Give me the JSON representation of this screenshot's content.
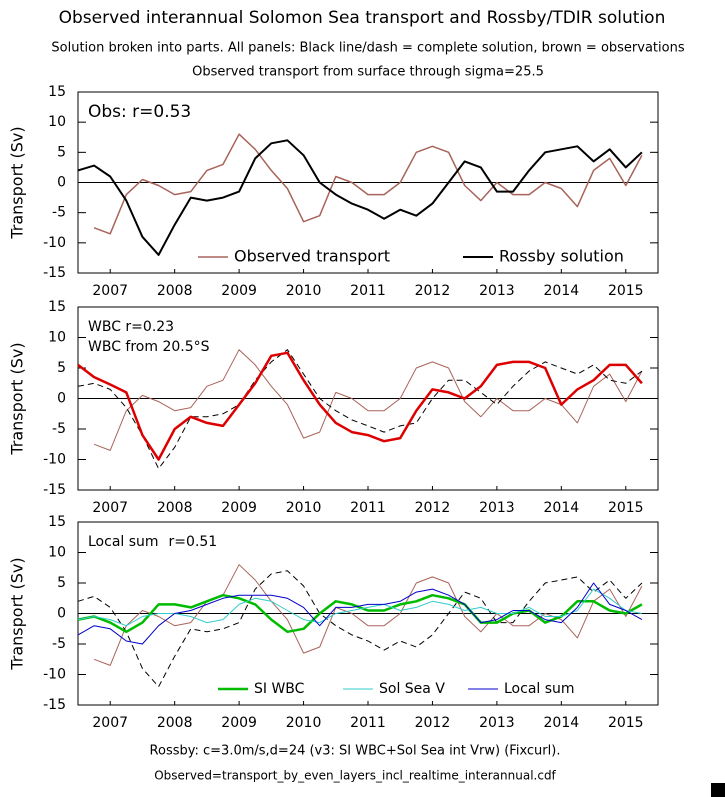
{
  "title": "Observed interannual Solomon Sea transport and Rossby/TDIR solution",
  "subtitle": [
    "Solution broken into parts. All panels: Black line/dash = complete solution, brown = observations",
    "Observed transport from surface through sigma=25.5"
  ],
  "footer": [
    "Rossby: c=3.0m/s,d=24 (v3: SI WBC+Sol Sea int Vrw) (Fixcurl).",
    "Observed=transport_by_even_layers_incl_realtime_interannual.cdf"
  ],
  "chart_data": [
    {
      "type": "line",
      "ylabel": "Transport (Sv)",
      "ylim": [
        -15,
        15
      ],
      "yticks": [
        -15,
        -10,
        -5,
        0,
        5,
        10,
        15
      ],
      "hline": 0,
      "xlim": [
        2007,
        2016
      ],
      "xticks": [
        {
          "value": 2007.5,
          "label": "2007"
        },
        {
          "value": 2008.5,
          "label": "2008"
        },
        {
          "value": 2009.5,
          "label": "2009"
        },
        {
          "value": 2010.5,
          "label": "2010"
        },
        {
          "value": 2011.5,
          "label": "2011"
        },
        {
          "value": 2012.5,
          "label": "2012"
        },
        {
          "value": 2013.5,
          "label": "2013"
        },
        {
          "value": 2014.5,
          "label": "2014"
        },
        {
          "value": 2015.5,
          "label": "2015"
        }
      ],
      "x": [
        2007.0,
        2007.25,
        2007.5,
        2007.75,
        2008.0,
        2008.25,
        2008.5,
        2008.75,
        2009.0,
        2009.25,
        2009.5,
        2009.75,
        2010.0,
        2010.25,
        2010.5,
        2010.75,
        2011.0,
        2011.25,
        2011.5,
        2011.75,
        2012.0,
        2012.25,
        2012.5,
        2012.75,
        2013.0,
        2013.25,
        2013.5,
        2013.75,
        2014.0,
        2014.25,
        2014.5,
        2014.75,
        2015.0,
        2015.25,
        2015.5,
        2015.75
      ],
      "annotations": [
        {
          "text": "Obs: r=0.53",
          "color": "#a8645a"
        }
      ],
      "legend": "lower center",
      "series": [
        {
          "name": "Observed transport",
          "color": "#a8645a",
          "width": 1.5,
          "values": [
            null,
            -7.5,
            -8.5,
            -2,
            0.5,
            -0.5,
            -2,
            -1.5,
            2,
            3,
            8,
            5.5,
            2,
            -1,
            -6.5,
            -5.5,
            1,
            0,
            -2,
            -2,
            0,
            5,
            6,
            5,
            -0.5,
            -3,
            0,
            -2,
            -2,
            0,
            -1,
            -4,
            2,
            4,
            -0.5,
            4.5
          ]
        },
        {
          "name": "Rossby solution",
          "color": "#000000",
          "width": 2,
          "values": [
            2,
            2.8,
            1,
            -3,
            -9,
            -12,
            -7,
            -2.5,
            -3,
            -2.5,
            -1.5,
            4,
            6.5,
            7,
            4.5,
            0,
            -2,
            -3.5,
            -4.5,
            -6,
            -4.5,
            -5.5,
            -3.5,
            0,
            3.5,
            2.5,
            -1.5,
            -1.5,
            2,
            5,
            5.5,
            6,
            3.5,
            5.5,
            2.5,
            5
          ]
        }
      ]
    },
    {
      "type": "line",
      "ylabel": "Transport (Sv)",
      "ylim": [
        -15,
        15
      ],
      "yticks": [
        -15,
        -10,
        -5,
        0,
        5,
        10,
        15
      ],
      "hline": 0,
      "xlim": [
        2007,
        2016
      ],
      "xticks": [
        {
          "value": 2007.5,
          "label": "2007"
        },
        {
          "value": 2008.5,
          "label": "2008"
        },
        {
          "value": 2009.5,
          "label": "2009"
        },
        {
          "value": 2010.5,
          "label": "2010"
        },
        {
          "value": 2011.5,
          "label": "2011"
        },
        {
          "value": 2012.5,
          "label": "2012"
        },
        {
          "value": 2013.5,
          "label": "2013"
        },
        {
          "value": 2014.5,
          "label": "2014"
        },
        {
          "value": 2015.5,
          "label": "2015"
        }
      ],
      "x": [
        2007.0,
        2007.25,
        2007.5,
        2007.75,
        2008.0,
        2008.25,
        2008.5,
        2008.75,
        2009.0,
        2009.25,
        2009.5,
        2009.75,
        2010.0,
        2010.25,
        2010.5,
        2010.75,
        2011.0,
        2011.25,
        2011.5,
        2011.75,
        2012.0,
        2012.25,
        2012.5,
        2012.75,
        2013.0,
        2013.25,
        2013.5,
        2013.75,
        2014.0,
        2014.25,
        2014.5,
        2014.75,
        2015.0,
        2015.25,
        2015.5,
        2015.75
      ],
      "annotations": [
        {
          "text": "WBC r=0.23",
          "color": "#dd0000"
        },
        {
          "text": "WBC from 20.5°S",
          "color": "#000000"
        }
      ],
      "series": [
        {
          "color": "#a8645a",
          "width": 1,
          "values": [
            null,
            -7.5,
            -8.5,
            -2,
            0.5,
            -0.5,
            -2,
            -1.5,
            2,
            3,
            8,
            5.5,
            2,
            -1,
            -6.5,
            -5.5,
            1,
            0,
            -2,
            -2,
            0,
            5,
            6,
            5,
            -0.5,
            -3,
            0,
            -2,
            -2,
            0,
            -1,
            -4,
            2,
            4,
            -0.5,
            4.5
          ]
        },
        {
          "color": "#000000",
          "width": 1,
          "dash": true,
          "values": [
            2,
            2.5,
            1.5,
            -1.5,
            -6,
            -11.5,
            -8,
            -3,
            -3,
            -2.5,
            -1,
            3,
            6,
            8,
            4,
            0,
            -2,
            -3.5,
            -4.5,
            -5.5,
            -4.5,
            -4,
            0,
            3,
            3,
            1,
            -1,
            2,
            4.5,
            6,
            5,
            4,
            5.5,
            3,
            2.5,
            4.5
          ]
        },
        {
          "color": "#dd0000",
          "width": 2.5,
          "values": [
            5.5,
            3.5,
            2.3,
            1,
            -6,
            -10,
            -5,
            -3,
            -4,
            -4.5,
            -1,
            2.5,
            7,
            7.5,
            3,
            -1,
            -4,
            -5.5,
            -6,
            -7,
            -6.5,
            -2,
            1.5,
            1,
            0,
            2,
            5.5,
            6,
            6,
            5,
            -1,
            1.5,
            3,
            5.5,
            5.5,
            2.5
          ]
        }
      ]
    },
    {
      "type": "line",
      "ylabel": "Transport (Sv)",
      "ylim": [
        -15,
        15
      ],
      "yticks": [
        -15,
        -10,
        -5,
        0,
        5,
        10,
        15
      ],
      "hline": 0,
      "xlim": [
        2007,
        2016
      ],
      "xticks": [
        {
          "value": 2007.5,
          "label": "2007"
        },
        {
          "value": 2008.5,
          "label": "2008"
        },
        {
          "value": 2009.5,
          "label": "2009"
        },
        {
          "value": 2010.5,
          "label": "2010"
        },
        {
          "value": 2011.5,
          "label": "2011"
        },
        {
          "value": 2012.5,
          "label": "2012"
        },
        {
          "value": 2013.5,
          "label": "2013"
        },
        {
          "value": 2014.5,
          "label": "2014"
        },
        {
          "value": 2015.5,
          "label": "2015"
        }
      ],
      "x": [
        2007.0,
        2007.25,
        2007.5,
        2007.75,
        2008.0,
        2008.25,
        2008.5,
        2008.75,
        2009.0,
        2009.25,
        2009.5,
        2009.75,
        2010.0,
        2010.25,
        2010.5,
        2010.75,
        2011.0,
        2011.25,
        2011.5,
        2011.75,
        2012.0,
        2012.25,
        2012.5,
        2012.75,
        2013.0,
        2013.25,
        2013.5,
        2013.75,
        2014.0,
        2014.25,
        2014.5,
        2014.75,
        2015.0,
        2015.25,
        2015.5,
        2015.75
      ],
      "annotations": [
        {
          "text": "Local sum",
          "color": "#0000cc"
        },
        {
          "text": "r=0.51",
          "color": "#a8645a"
        }
      ],
      "legend": "lower center",
      "series": [
        {
          "color": "#a8645a",
          "width": 1,
          "values": [
            null,
            -7.5,
            -8.5,
            -2,
            0.5,
            -0.5,
            -2,
            -1.5,
            2,
            3,
            8,
            5.5,
            2,
            -1,
            -6.5,
            -5.5,
            1,
            0,
            -2,
            -2,
            0,
            5,
            6,
            5,
            -0.5,
            -3,
            0,
            -2,
            -2,
            0,
            -1,
            -4,
            2,
            4,
            -0.5,
            4.5
          ]
        },
        {
          "color": "#000000",
          "width": 1,
          "dash": true,
          "values": [
            2,
            2.8,
            1,
            -3,
            -9,
            -12,
            -7,
            -2.5,
            -3,
            -2.5,
            -1.5,
            4,
            6.5,
            7,
            4.5,
            0,
            -2,
            -3.5,
            -4.5,
            -6,
            -4.5,
            -5.5,
            -3.5,
            0,
            3.5,
            2.5,
            -1.5,
            -1.5,
            2,
            5,
            5.5,
            6,
            3.5,
            5.5,
            2.5,
            5
          ]
        },
        {
          "name": "SI WBC",
          "color": "#00bb00",
          "width": 2.5,
          "values": [
            -1,
            -0.5,
            -1.5,
            -3,
            -1.5,
            1.5,
            1.5,
            1,
            2,
            3,
            2.5,
            1.5,
            -1,
            -3,
            -2.5,
            0,
            2,
            1.5,
            0.5,
            0.5,
            1.5,
            2,
            3,
            2.5,
            1.5,
            -1.5,
            -1.5,
            0,
            0.5,
            -1.5,
            -0.5,
            2,
            2,
            0.5,
            0,
            1.5
          ]
        },
        {
          "name": "Sol Sea V",
          "color": "#33cccc",
          "width": 1,
          "values": [
            -1,
            -0.5,
            -1,
            -2,
            -0.5,
            0,
            0,
            -0.5,
            -1.5,
            -1,
            1.5,
            2.5,
            2,
            0.5,
            -1,
            -1.5,
            0,
            0.5,
            1,
            1.5,
            0.5,
            1,
            2,
            1.5,
            0.5,
            1,
            0,
            0,
            1,
            -0.5,
            -0.5,
            0.5,
            4,
            2.5,
            0.5,
            0
          ]
        },
        {
          "name": "Local sum",
          "color": "#0000cc",
          "width": 1,
          "values": [
            -3.5,
            -2,
            -2.5,
            -4.5,
            -5,
            -2,
            0,
            0.5,
            1.5,
            2.5,
            3,
            3,
            3,
            2.5,
            1,
            -2,
            1,
            1,
            1.5,
            1.5,
            2,
            3.5,
            4,
            3,
            1.5,
            -1.5,
            -1,
            0.5,
            0.5,
            -1,
            -1.5,
            1,
            5,
            1.5,
            0.5,
            -1
          ]
        }
      ]
    }
  ]
}
